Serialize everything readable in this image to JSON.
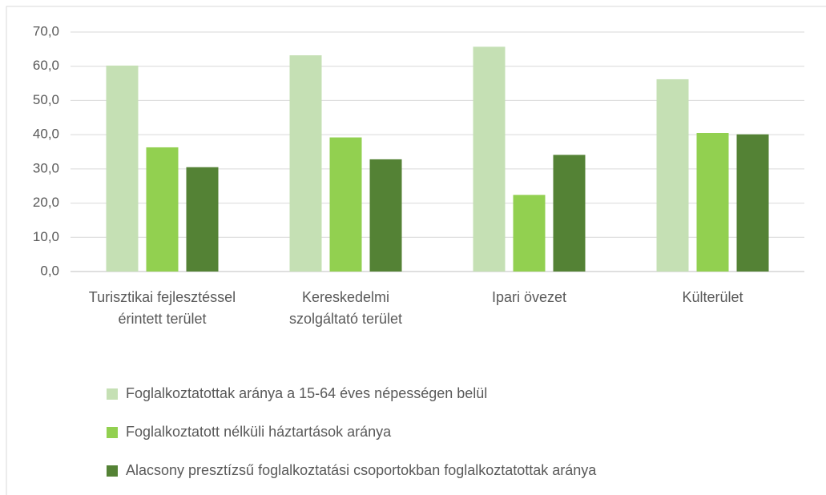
{
  "chart_data": {
    "type": "bar",
    "categories": [
      "Turisztikai fejlesztéssel érintett terület",
      "Kereskedelmi szolgáltató terület",
      "Ipari övezet",
      "Külterület"
    ],
    "series": [
      {
        "name": "Foglalkoztatottak aránya a 15-64 éves népességen belül",
        "color": "#c5e0b4",
        "values": [
          60.2,
          63.2,
          65.7,
          56.2
        ]
      },
      {
        "name": "Foglalkoztatott nélküli háztartások aránya",
        "color": "#92d050",
        "values": [
          36.3,
          39.2,
          22.4,
          40.5
        ]
      },
      {
        "name": "Alacsony presztízsű foglalkoztatási csoportokban foglalkoztatottak aránya",
        "color": "#548235",
        "values": [
          30.5,
          32.8,
          34.1,
          40.1
        ]
      }
    ],
    "ylim": [
      0,
      70
    ],
    "yticks": [
      {
        "value": 0,
        "label": "0,0"
      },
      {
        "value": 10,
        "label": "10,0"
      },
      {
        "value": 20,
        "label": "20,0"
      },
      {
        "value": 30,
        "label": "30,0"
      },
      {
        "value": 40,
        "label": "40,0"
      },
      {
        "value": 50,
        "label": "50,0"
      },
      {
        "value": 60,
        "label": "60,0"
      },
      {
        "value": 70,
        "label": "70,0"
      }
    ],
    "grid": true,
    "legend": "bottom"
  }
}
